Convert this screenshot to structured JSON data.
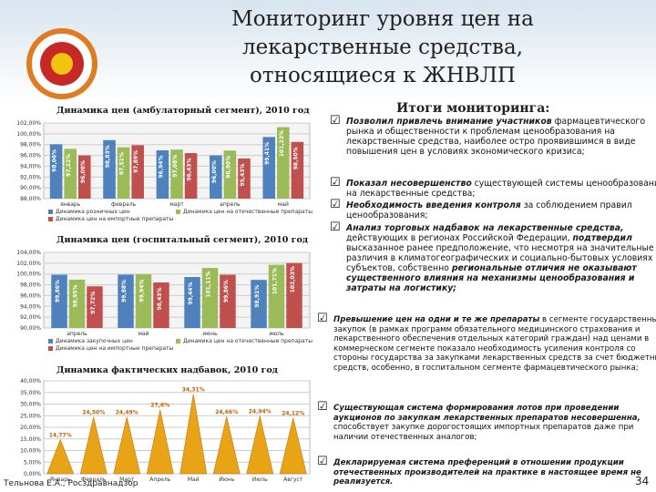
{
  "header": {
    "title_lines": [
      "Мониторинг уровня цен на",
      "лекарственные средства,",
      "относящиеся к ЖНВЛП"
    ]
  },
  "charts": [
    {
      "chart_data": {
        "type": "bar",
        "title": "Динамика цен (амбулаторный сегмент), 2010 год",
        "categories": [
          "январь",
          "февраль",
          "март",
          "апрель",
          "май"
        ],
        "series": [
          {
            "name": "Динамика розничных цен",
            "color": "#4f81bd",
            "values": [
              98.06,
              98.83,
              96.94,
              96.0,
              99.41
            ],
            "value_labels": [
              "98,06%",
              "98,83%",
              "96,94%",
              "96,00%",
              "99,41%"
            ]
          },
          {
            "name": "Динамика цен на отечественные препараты",
            "color": "#9bbb59",
            "values": [
              97.22,
              97.51,
              97.08,
              96.9,
              101.23
            ],
            "value_labels": [
              "97,22%",
              "97,51%",
              "97,08%",
              "96,90%",
              "101,23%"
            ]
          },
          {
            "name": "Динамика цен на импортные препараты",
            "color": "#c0504d",
            "values": [
              96.0,
              97.89,
              96.43,
              95.43,
              98.5
            ],
            "value_labels": [
              "96,00%",
              "97,89%",
              "96,43%",
              "95,43%",
              "98,50%"
            ]
          }
        ],
        "ylim": [
          88,
          102
        ],
        "yticks": [
          {
            "value": 88,
            "label": "88,00%"
          },
          {
            "value": 90,
            "label": "90,00%"
          },
          {
            "value": 92,
            "label": "92,00%"
          },
          {
            "value": 94,
            "label": "94,00%"
          },
          {
            "value": 96,
            "label": "96,00%"
          },
          {
            "value": 98,
            "label": "98,00%"
          },
          {
            "value": 100,
            "label": "100,00%"
          },
          {
            "value": 102,
            "label": "102,00%"
          }
        ]
      }
    },
    {
      "chart_data": {
        "type": "bar",
        "title": "Динамика цен (госпитальный сегмент), 2010 год",
        "categories": [
          "апрель",
          "май",
          "июнь",
          "июль"
        ],
        "series": [
          {
            "name": "Динамика закупочных цен",
            "color": "#4f81bd",
            "values": [
              99.86,
              99.88,
              99.44,
              98.91
            ],
            "value_labels": [
              "99,86%",
              "99,88%",
              "99,44%",
              "98,91%"
            ]
          },
          {
            "name": "Динамика цен на отечественные препараты",
            "color": "#9bbb59",
            "values": [
              98.95,
              99.94,
              101.11,
              101.71
            ],
            "value_labels": [
              "98,95%",
              "99,94%",
              "101,11%",
              "101,71%"
            ]
          },
          {
            "name": "Динамика цен на импортные препараты",
            "color": "#c0504d",
            "values": [
              97.72,
              98.43,
              99.86,
              102.03
            ],
            "value_labels": [
              "97,72%",
              "98,43%",
              "99,86%",
              "102,03%"
            ]
          }
        ],
        "ylim": [
          90,
          104
        ],
        "yticks": [
          {
            "value": 90,
            "label": "90,00%"
          },
          {
            "value": 92,
            "label": "92,00%"
          },
          {
            "value": 94,
            "label": "94,00%"
          },
          {
            "value": 96,
            "label": "96,00%"
          },
          {
            "value": 98,
            "label": "98,00%"
          },
          {
            "value": 100,
            "label": "100,00%"
          },
          {
            "value": 102,
            "label": "102,00%"
          },
          {
            "value": 104,
            "label": "104,00%"
          }
        ]
      }
    },
    {
      "chart_data": {
        "type": "cone",
        "title": "Динамика фактических надбавок, 2010 год",
        "categories": [
          "Январь",
          "Февраль",
          "Март",
          "Апрель",
          "Май",
          "Июнь",
          "Июль",
          "Август"
        ],
        "values": [
          14.77,
          24.5,
          24.49,
          27.6,
          34.31,
          24.66,
          24.94,
          24.12
        ],
        "value_labels": [
          "14,77%",
          "24,50%",
          "24,49%",
          "27,6%",
          "34,31%",
          "24,66%",
          "24,94%",
          "24,12%"
        ],
        "color": "#e8a317",
        "ylim": [
          0,
          40
        ],
        "yticks": [
          {
            "value": 0,
            "label": "0,00%"
          },
          {
            "value": 5,
            "label": "5,00%"
          },
          {
            "value": 10,
            "label": "10,00%"
          },
          {
            "value": 15,
            "label": "15,00%"
          },
          {
            "value": 20,
            "label": "20,00%"
          },
          {
            "value": 25,
            "label": "25,00%"
          },
          {
            "value": 30,
            "label": "30,00%"
          },
          {
            "value": 35,
            "label": "35,00%"
          },
          {
            "value": 40,
            "label": "40,00%"
          }
        ]
      }
    }
  ],
  "results": {
    "title": "Итоги мониторинга:",
    "bullets": [
      [
        {
          "text": "Позволил привлечь внимание участников",
          "em": true
        },
        {
          "text": " фармацевтического рынка и общественности к проблемам ценообразования на лекарственные средства, наиболее остро проявившимся в виде повышения цен в условиях экономического кризиса;"
        }
      ],
      [
        {
          "text": "Показал несовершенство",
          "em": true
        },
        {
          "text": " существующей системы ценообразования на лекарственные средства;"
        }
      ],
      [
        {
          "text": "Необходимость введения контроля",
          "em": true
        },
        {
          "text": " за соблюдением правил ценообразования;"
        }
      ],
      [
        {
          "text": "Анализ торговых надбавок на лекарственные средства,",
          "em": true
        },
        {
          "text": " действующих в регионах Российской Федерации, "
        },
        {
          "text": "подтвердил",
          "em": true
        },
        {
          "text": " высказанное ранее предположение, что несмотря на значительные различия в климатогеографических и социально-бытовых условиях субъектов, собственно "
        },
        {
          "text": "региональные отличия не оказывают существенного влияния на механизмы ценообразования и затраты на логистику;",
          "em": true
        }
      ],
      [
        {
          "text": "Превышение цен на одни и те же препараты",
          "em": true
        },
        {
          "text": " в сегменте государственных закупок (в рамках программ обязательного медицинского страхования и лекарственного обеспечения отдельных категорий граждан) над ценами в коммерческом сегменте показало необходимость усиления контроля со стороны государства за закупками лекарственных средств за счет бюджетных средств, особенно, в госпитальном сегменте фармацевтического рынка;"
        }
      ],
      [
        {
          "text": "Существующая система формирования лотов при проведении аукционов по закупкам лекарственных препаратов несовершенна,",
          "em": true
        },
        {
          "text": " способствует закупке дорогостоящих импортных препаратов даже при наличии отечественных аналогов;"
        }
      ],
      [
        {
          "text": "Декларируемая система преференций в отношении продукции отечественных производителей на практике в настоящее время не реализуется.",
          "em": true
        }
      ]
    ]
  },
  "footer": {
    "author": "Тельнова Е.А., Росздравнадзор",
    "page": "34"
  }
}
